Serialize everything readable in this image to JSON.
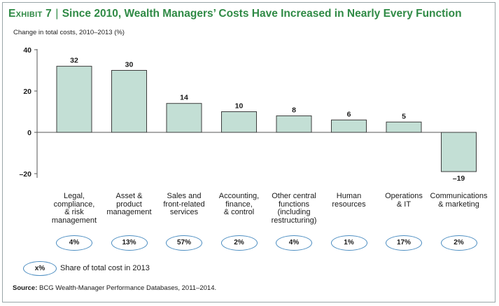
{
  "title": {
    "exhibit": "Exhibit 7",
    "separator": "|",
    "text": "Since 2010, Wealth Managers’ Costs Have Increased in Nearly Every Function"
  },
  "colors": {
    "title": "#2f8a45",
    "bar_fill": "#c3dfd5",
    "bar_stroke": "#3d3d3d",
    "ellipse": "#4a8cc0"
  },
  "chart_data": {
    "type": "bar",
    "ylabel": "Change in total costs, 2010–2013 (%)",
    "ylim": [
      -20,
      40
    ],
    "yticks": [
      40,
      20,
      0,
      -20
    ],
    "ytick_labels": [
      "40",
      "20",
      "0",
      "–20"
    ],
    "categories": [
      "Legal,\ncompliance,\n& risk\nmanagement",
      "Asset &\nproduct\nmanagement",
      "Sales and\nfront-related\nservices",
      "Accounting,\nfinance,\n& control",
      "Other central\nfunctions\n(including\nrestructuring)",
      "Human\nresources",
      "Operations\n& IT",
      "Communications\n& marketing"
    ],
    "values": [
      32,
      30,
      14,
      10,
      8,
      6,
      5,
      -19
    ],
    "value_labels": [
      "32",
      "30",
      "14",
      "10",
      "8",
      "6",
      "5",
      "–19"
    ],
    "share_of_total_cost_2013": [
      "4%",
      "13%",
      "57%",
      "2%",
      "4%",
      "1%",
      "17%",
      "2%"
    ],
    "legend": true,
    "grid": false
  },
  "legend": {
    "symbol": "x%",
    "text": "Share of total cost in 2013"
  },
  "source": {
    "label": "Source:",
    "text": "BCG Wealth-Manager Performance Databases, 2011–2014."
  }
}
